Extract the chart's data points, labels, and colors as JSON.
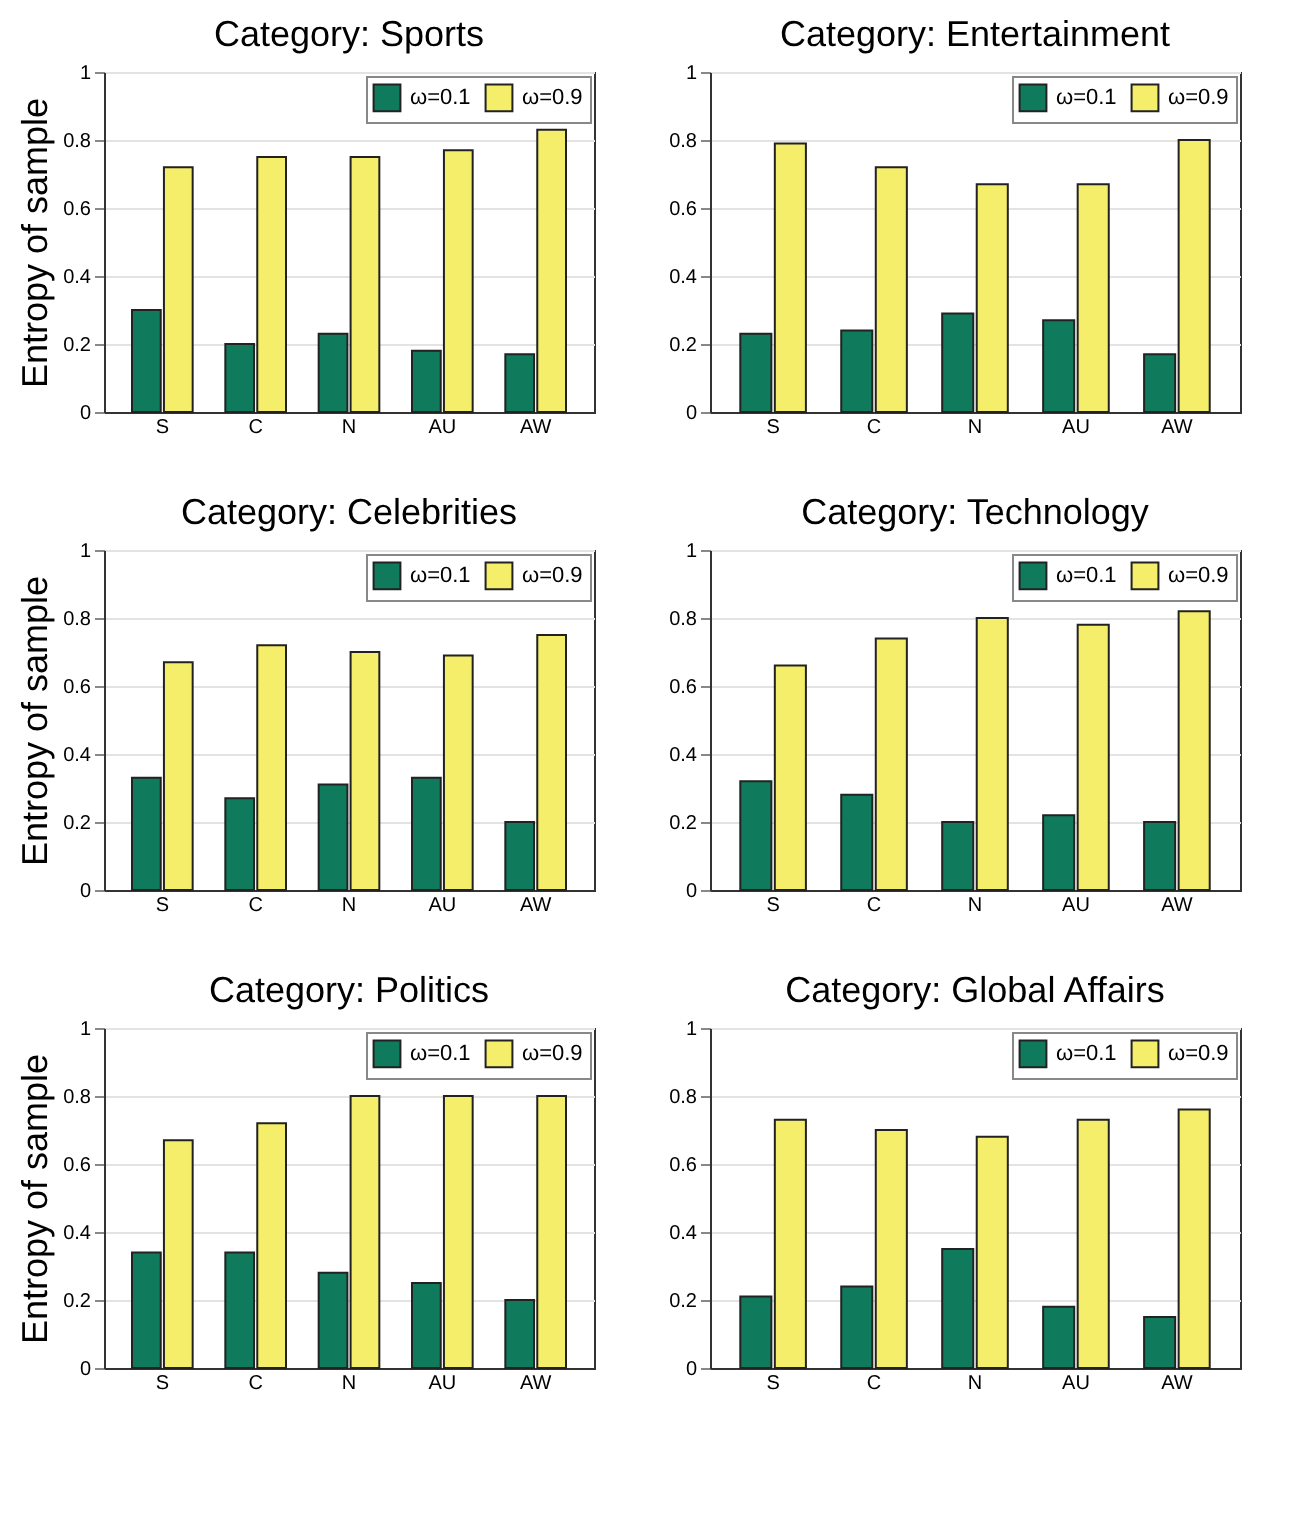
{
  "chart_data": [
    {
      "type": "bar",
      "title": "Category: Sports",
      "ylabel": "Entropy of sample",
      "categories": [
        "S",
        "C",
        "N",
        "AU",
        "AW"
      ],
      "series": [
        {
          "name": "ω=0.1",
          "color": "#0f7a5c",
          "values": [
            0.3,
            0.2,
            0.23,
            0.18,
            0.17
          ]
        },
        {
          "name": "ω=0.9",
          "color": "#f5ee6a",
          "values": [
            0.72,
            0.75,
            0.75,
            0.77,
            0.83
          ]
        }
      ],
      "ylim": [
        0,
        1
      ],
      "yticks": [
        0,
        0.2,
        0.4,
        0.6,
        0.8,
        1
      ],
      "grid": "y",
      "legend": "top right"
    },
    {
      "type": "bar",
      "title": "Category: Entertainment",
      "categories": [
        "S",
        "C",
        "N",
        "AU",
        "AW"
      ],
      "series": [
        {
          "name": "ω=0.1",
          "color": "#0f7a5c",
          "values": [
            0.23,
            0.24,
            0.29,
            0.27,
            0.17
          ]
        },
        {
          "name": "ω=0.9",
          "color": "#f5ee6a",
          "values": [
            0.79,
            0.72,
            0.67,
            0.67,
            0.8
          ]
        }
      ],
      "ylim": [
        0,
        1
      ],
      "yticks": [
        0,
        0.2,
        0.4,
        0.6,
        0.8,
        1
      ],
      "grid": "y",
      "legend": "top right"
    },
    {
      "type": "bar",
      "title": "Category: Celebrities",
      "ylabel": "Entropy of sample",
      "categories": [
        "S",
        "C",
        "N",
        "AU",
        "AW"
      ],
      "series": [
        {
          "name": "ω=0.1",
          "color": "#0f7a5c",
          "values": [
            0.33,
            0.27,
            0.31,
            0.33,
            0.2
          ]
        },
        {
          "name": "ω=0.9",
          "color": "#f5ee6a",
          "values": [
            0.67,
            0.72,
            0.7,
            0.69,
            0.75
          ]
        }
      ],
      "ylim": [
        0,
        1
      ],
      "yticks": [
        0,
        0.2,
        0.4,
        0.6,
        0.8,
        1
      ],
      "grid": "y",
      "legend": "top right"
    },
    {
      "type": "bar",
      "title": "Category: Technology",
      "categories": [
        "S",
        "C",
        "N",
        "AU",
        "AW"
      ],
      "series": [
        {
          "name": "ω=0.1",
          "color": "#0f7a5c",
          "values": [
            0.32,
            0.28,
            0.2,
            0.22,
            0.2
          ]
        },
        {
          "name": "ω=0.9",
          "color": "#f5ee6a",
          "values": [
            0.66,
            0.74,
            0.8,
            0.78,
            0.82
          ]
        }
      ],
      "ylim": [
        0,
        1
      ],
      "yticks": [
        0,
        0.2,
        0.4,
        0.6,
        0.8,
        1
      ],
      "grid": "y",
      "legend": "top right"
    },
    {
      "type": "bar",
      "title": "Category: Politics",
      "ylabel": "Entropy of sample",
      "categories": [
        "S",
        "C",
        "N",
        "AU",
        "AW"
      ],
      "series": [
        {
          "name": "ω=0.1",
          "color": "#0f7a5c",
          "values": [
            0.34,
            0.34,
            0.28,
            0.25,
            0.2
          ]
        },
        {
          "name": "ω=0.9",
          "color": "#f5ee6a",
          "values": [
            0.67,
            0.72,
            0.8,
            0.8,
            0.8
          ]
        }
      ],
      "ylim": [
        0,
        1
      ],
      "yticks": [
        0,
        0.2,
        0.4,
        0.6,
        0.8,
        1
      ],
      "grid": "y",
      "legend": "top right"
    },
    {
      "type": "bar",
      "title": "Category: Global Affairs",
      "categories": [
        "S",
        "C",
        "N",
        "AU",
        "AW"
      ],
      "series": [
        {
          "name": "ω=0.1",
          "color": "#0f7a5c",
          "values": [
            0.21,
            0.24,
            0.35,
            0.18,
            0.15
          ]
        },
        {
          "name": "ω=0.9",
          "color": "#f5ee6a",
          "values": [
            0.73,
            0.7,
            0.68,
            0.73,
            0.76
          ]
        }
      ],
      "ylim": [
        0,
        1
      ],
      "yticks": [
        0,
        0.2,
        0.4,
        0.6,
        0.8,
        1
      ],
      "grid": "y",
      "legend": "top right"
    }
  ]
}
